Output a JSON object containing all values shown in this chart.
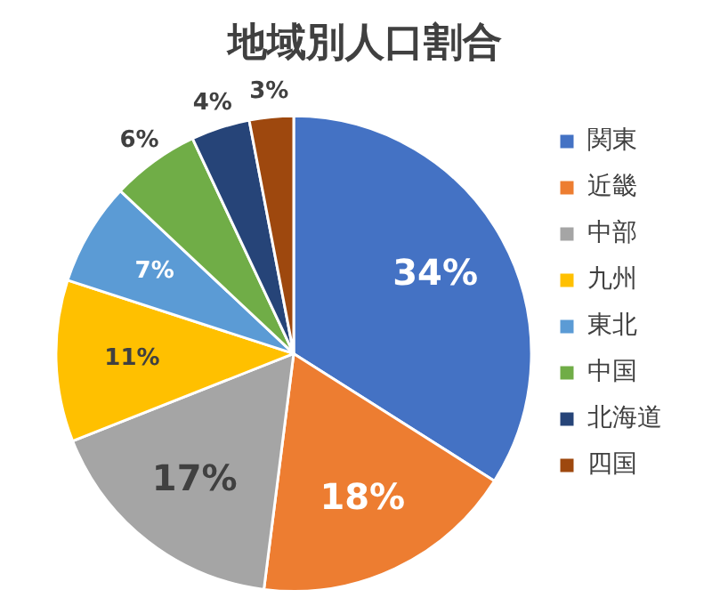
{
  "chart_data": {
    "type": "pie",
    "title": "地域別人口割合",
    "categories": [
      "関東",
      "近畿",
      "中部",
      "九州",
      "東北",
      "中国",
      "北海道",
      "四国"
    ],
    "values": [
      34,
      18,
      17,
      11,
      7,
      6,
      4,
      3
    ],
    "value_labels": [
      "34%",
      "18%",
      "17%",
      "11%",
      "7%",
      "6%",
      "4%",
      "3%"
    ],
    "colors": [
      "#4472c4",
      "#ed7d31",
      "#a5a5a5",
      "#ffc000",
      "#5b9bd5",
      "#70ad47",
      "#264478",
      "#9e480e"
    ],
    "legend": "right"
  }
}
